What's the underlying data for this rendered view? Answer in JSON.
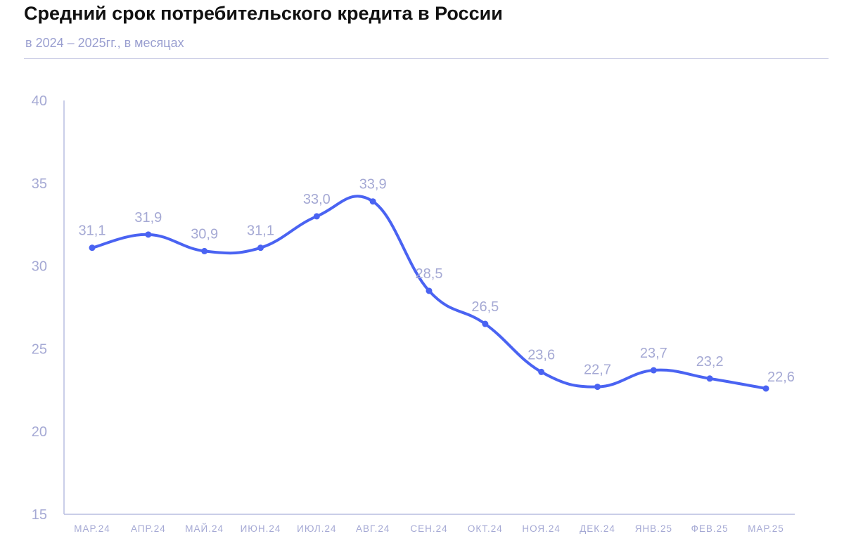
{
  "header": {
    "title": "Средний срок потребительского кредита в России",
    "subtitle": "в 2024 – 2025гг., в месяцах"
  },
  "colors": {
    "line": "#4a63f2",
    "axis": "#b9bde0",
    "text": "#a5a9d4"
  },
  "chart_data": {
    "type": "line",
    "title": "Средний срок потребительского кредита в России",
    "subtitle": "в 2024 – 2025гг., в месяцах",
    "xlabel": "",
    "ylabel": "",
    "ylim": [
      15,
      40
    ],
    "yticks": [
      15,
      20,
      25,
      30,
      35,
      40
    ],
    "grid": false,
    "legend": "none",
    "categories": [
      "МАР.24",
      "АПР.24",
      "МАЙ.24",
      "ИЮН.24",
      "ИЮЛ.24",
      "АВГ.24",
      "СЕН.24",
      "ОКТ.24",
      "НОЯ.24",
      "ДЕК.24",
      "ЯНВ.25",
      "ФЕВ.25",
      "МАР.25"
    ],
    "series": [
      {
        "values": [
          31.1,
          31.9,
          30.9,
          31.1,
          33.0,
          33.9,
          28.5,
          26.5,
          23.6,
          22.7,
          23.7,
          23.2,
          22.6
        ],
        "labels": [
          "31,1",
          "31,9",
          "30,9",
          "31,1",
          "33,0",
          "33,9",
          "28,5",
          "26,5",
          "23,6",
          "22,7",
          "23,7",
          "23,2",
          "22,6"
        ]
      }
    ]
  }
}
